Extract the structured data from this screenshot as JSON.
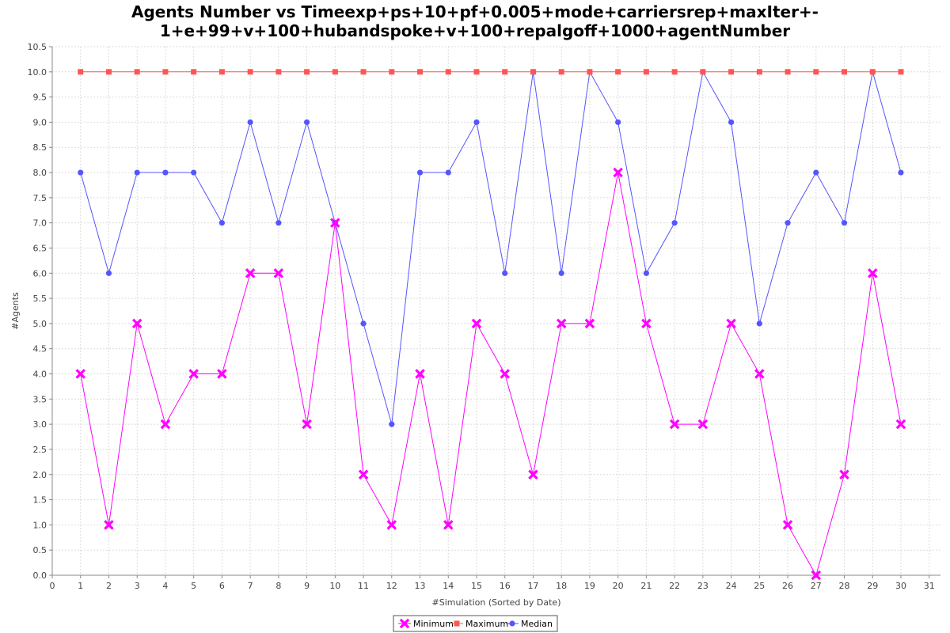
{
  "chart_data": {
    "type": "line",
    "title": "Agents Number vs Timeexp+ps+10+pf+0.005+mode+carriersrep+maxIter+-1+e+99+v+100+hubandspoke+v+100+repalgoff+1000+agentNumber",
    "title_lines": [
      "Agents Number vs Timeexp+ps+10+pf+0.005+mode+carriersrep+maxIter+-",
      "1+e+99+v+100+hubandspoke+v+100+repalgoff+1000+agentNumber"
    ],
    "xlabel": "#Simulation (Sorted by Date)",
    "ylabel": "#Agents",
    "xlim": [
      0,
      31.4
    ],
    "ylim": [
      0,
      10.5
    ],
    "x_ticks": [
      0,
      1,
      2,
      3,
      4,
      5,
      6,
      7,
      8,
      9,
      10,
      11,
      12,
      13,
      14,
      15,
      16,
      17,
      18,
      19,
      20,
      21,
      22,
      23,
      24,
      25,
      26,
      27,
      28,
      29,
      30,
      31
    ],
    "y_ticks": [
      0.0,
      0.5,
      1.0,
      1.5,
      2.0,
      2.5,
      3.0,
      3.5,
      4.0,
      4.5,
      5.0,
      5.5,
      6.0,
      6.5,
      7.0,
      7.5,
      8.0,
      8.5,
      9.0,
      9.5,
      10.0,
      10.5
    ],
    "grid": true,
    "legend_position": "bottom-center",
    "x": [
      1,
      2,
      3,
      4,
      5,
      6,
      7,
      8,
      9,
      10,
      11,
      12,
      13,
      14,
      15,
      16,
      17,
      18,
      19,
      20,
      21,
      22,
      23,
      24,
      25,
      26,
      27,
      28,
      29,
      30
    ],
    "series": [
      {
        "name": "Minimum",
        "color": "#ff00ff",
        "marker": "x",
        "values": [
          4,
          1,
          5,
          3,
          4,
          4,
          6,
          6,
          3,
          7,
          2,
          1,
          4,
          1,
          5,
          4,
          2,
          5,
          5,
          8,
          5,
          3,
          3,
          5,
          4,
          1,
          0,
          2,
          6,
          3
        ]
      },
      {
        "name": "Maximum",
        "color": "#ff5555",
        "marker": "square",
        "values": [
          10,
          10,
          10,
          10,
          10,
          10,
          10,
          10,
          10,
          10,
          10,
          10,
          10,
          10,
          10,
          10,
          10,
          10,
          10,
          10,
          10,
          10,
          10,
          10,
          10,
          10,
          10,
          10,
          10,
          10
        ]
      },
      {
        "name": "Median",
        "color": "#5555ff",
        "marker": "circle",
        "values": [
          8,
          6,
          8,
          8,
          8,
          7,
          9,
          7,
          9,
          7,
          5,
          3,
          8,
          8,
          9,
          6,
          10,
          6,
          10,
          9,
          6,
          7,
          10,
          9,
          5,
          7,
          8,
          7,
          10,
          8
        ]
      }
    ]
  }
}
